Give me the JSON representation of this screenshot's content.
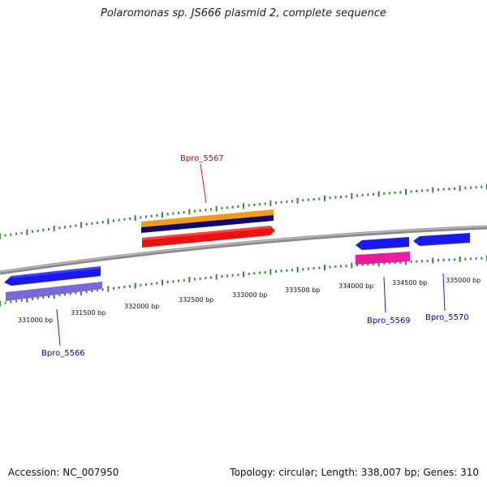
{
  "title": "Polaromonas sp. JS666 plasmid 2, complete sequence",
  "footer": {
    "accession": "Accession: NC_007950",
    "summary": "Topology: circular; Length: 338,007 bp; Genes: 310"
  },
  "position_labels": [
    "331000 bp",
    "331500 bp",
    "332000 bp",
    "332500 bp",
    "333000 bp",
    "333500 bp",
    "334000 bp",
    "334500 bp",
    "335000 bp"
  ],
  "genes": [
    {
      "name": "Bpro_5566",
      "color": "#0000cc"
    },
    {
      "name": "Bpro_5567",
      "color": "#cc0000"
    },
    {
      "name": "Bpro_5569",
      "color": "#0000cc"
    },
    {
      "name": "Bpro_5570",
      "color": "#0000cc"
    }
  ],
  "colors": {
    "backbone": "#8a8a8a",
    "tick": "#2e8b2e",
    "blue": "#1a1aee",
    "purple": "#7b68d8",
    "red": "#ee1111",
    "orange": "#f39a1a",
    "navy": "#0b0b6e",
    "pink": "#ee1a9a"
  }
}
